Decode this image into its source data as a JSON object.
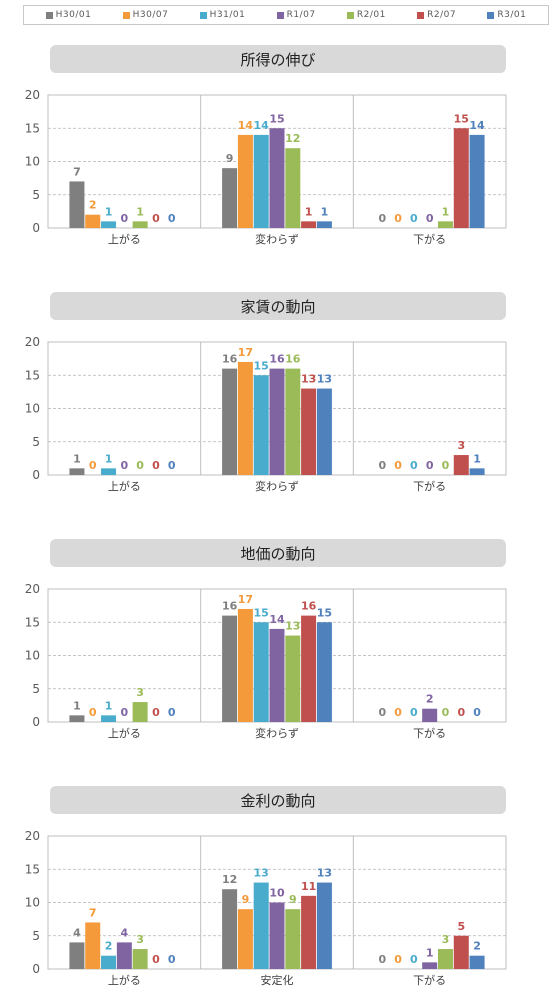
{
  "legend": [
    {
      "name": "H30/01",
      "color": "#7f7f7f"
    },
    {
      "name": "H30/07",
      "color": "#f59a3b"
    },
    {
      "name": "H31/01",
      "color": "#4aaccc"
    },
    {
      "name": "R1/07",
      "color": "#8064a2"
    },
    {
      "name": "R2/01",
      "color": "#9bbb59"
    },
    {
      "name": "R2/07",
      "color": "#c0504d"
    },
    {
      "name": "R3/01",
      "color": "#4f81bd"
    }
  ],
  "chart_data": [
    {
      "type": "bar",
      "title": "所得の伸び",
      "categories": [
        "上がる",
        "変わらず",
        "下がる"
      ],
      "ylim": [
        0,
        20
      ],
      "yticks": [
        0,
        5,
        10,
        15,
        20
      ],
      "grid": true,
      "legend": "top",
      "series": [
        {
          "name": "H30/01",
          "values": [
            7,
            9,
            0
          ]
        },
        {
          "name": "H30/07",
          "values": [
            2,
            14,
            0
          ]
        },
        {
          "name": "H31/01",
          "values": [
            1,
            14,
            0
          ]
        },
        {
          "name": "R1/07",
          "values": [
            0,
            15,
            0
          ]
        },
        {
          "name": "R2/01",
          "values": [
            1,
            12,
            1
          ]
        },
        {
          "name": "R2/07",
          "values": [
            0,
            1,
            15
          ]
        },
        {
          "name": "R3/01",
          "values": [
            0,
            1,
            14
          ]
        }
      ]
    },
    {
      "type": "bar",
      "title": "家賃の動向",
      "categories": [
        "上がる",
        "変わらず",
        "下がる"
      ],
      "ylim": [
        0,
        20
      ],
      "yticks": [
        0,
        5,
        10,
        15,
        20
      ],
      "grid": true,
      "legend": "top",
      "series": [
        {
          "name": "H30/01",
          "values": [
            1,
            16,
            0
          ]
        },
        {
          "name": "H30/07",
          "values": [
            0,
            17,
            0
          ]
        },
        {
          "name": "H31/01",
          "values": [
            1,
            15,
            0
          ]
        },
        {
          "name": "R1/07",
          "values": [
            0,
            16,
            0
          ]
        },
        {
          "name": "R2/01",
          "values": [
            0,
            16,
            0
          ]
        },
        {
          "name": "R2/07",
          "values": [
            0,
            13,
            3
          ]
        },
        {
          "name": "R3/01",
          "values": [
            0,
            13,
            1
          ]
        }
      ]
    },
    {
      "type": "bar",
      "title": "地価の動向",
      "categories": [
        "上がる",
        "変わらず",
        "下がる"
      ],
      "ylim": [
        0,
        20
      ],
      "yticks": [
        0,
        5,
        10,
        15,
        20
      ],
      "grid": true,
      "legend": "top",
      "series": [
        {
          "name": "H30/01",
          "values": [
            1,
            16,
            0
          ]
        },
        {
          "name": "H30/07",
          "values": [
            0,
            17,
            0
          ]
        },
        {
          "name": "H31/01",
          "values": [
            1,
            15,
            0
          ]
        },
        {
          "name": "R1/07",
          "values": [
            0,
            14,
            2
          ]
        },
        {
          "name": "R2/01",
          "values": [
            3,
            13,
            0
          ]
        },
        {
          "name": "R2/07",
          "values": [
            0,
            16,
            0
          ]
        },
        {
          "name": "R3/01",
          "values": [
            0,
            15,
            0
          ]
        }
      ]
    },
    {
      "type": "bar",
      "title": "金利の動向",
      "categories": [
        "上がる",
        "安定化",
        "下がる"
      ],
      "ylim": [
        0,
        20
      ],
      "yticks": [
        0,
        5,
        10,
        15,
        20
      ],
      "grid": true,
      "legend": "top",
      "series": [
        {
          "name": "H30/01",
          "values": [
            4,
            12,
            0
          ]
        },
        {
          "name": "H30/07",
          "values": [
            7,
            9,
            0
          ]
        },
        {
          "name": "H31/01",
          "values": [
            2,
            13,
            0
          ]
        },
        {
          "name": "R1/07",
          "values": [
            4,
            10,
            1
          ]
        },
        {
          "name": "R2/01",
          "values": [
            3,
            9,
            3
          ]
        },
        {
          "name": "R2/07",
          "values": [
            0,
            11,
            5
          ]
        },
        {
          "name": "R3/01",
          "values": [
            0,
            13,
            2
          ]
        }
      ]
    }
  ]
}
